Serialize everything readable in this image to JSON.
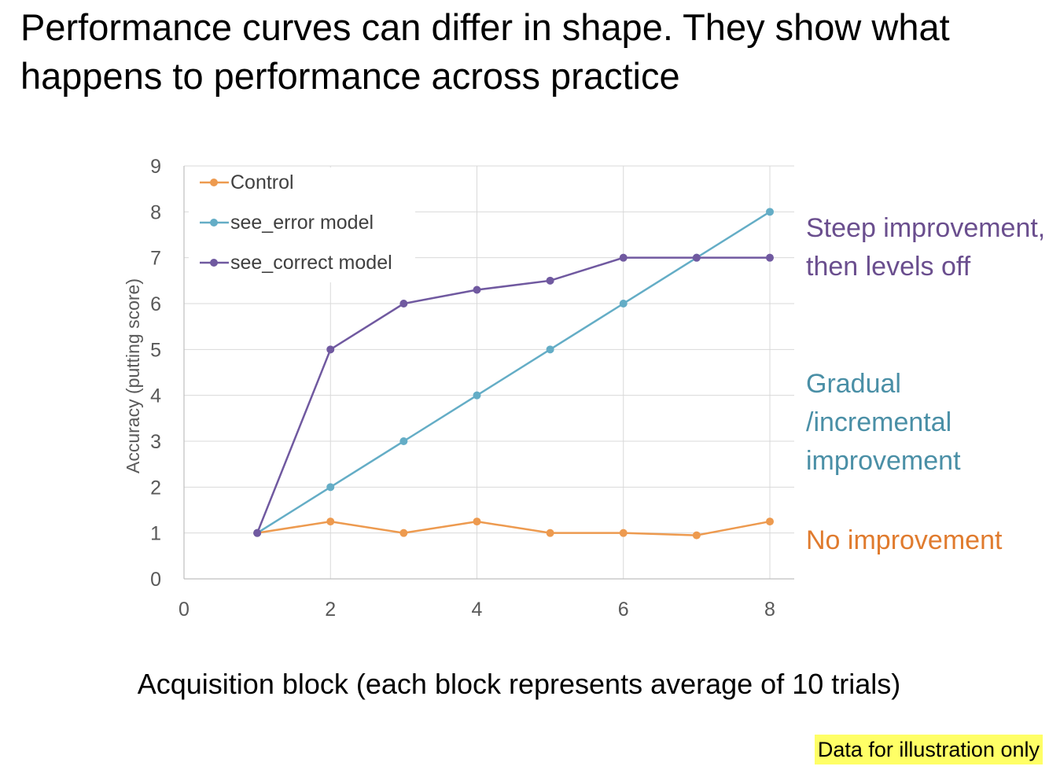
{
  "title": "Performance curves can differ in shape. They show what happens to performance across practice",
  "x_caption": "Acquisition block (each block represents average of 10 trials)",
  "disclaimer": "Data for illustration only",
  "annotations": {
    "steep": "Steep improvement, then levels off",
    "gradual": "Gradual /incremental improvement",
    "none": "No improvement"
  },
  "colors": {
    "control": "#ED9A4F",
    "see_error": "#64ADC6",
    "see_correct": "#7059A0",
    "steep_text": "#6A4E8E",
    "gradual_text": "#4A8FA6",
    "none_text": "#E07B2E",
    "disclaimer_bg": "#FFFF66",
    "grid": "#D9D9D9",
    "tick_text": "#595959"
  },
  "chart_data": {
    "type": "line",
    "ylabel": "Accuracy (putting score)",
    "xlabel": "",
    "xlim": [
      0,
      8
    ],
    "ylim": [
      0,
      9
    ],
    "x_ticks": [
      0,
      2,
      4,
      6,
      8
    ],
    "y_ticks": [
      0,
      1,
      2,
      3,
      4,
      5,
      6,
      7,
      8,
      9
    ],
    "grid": true,
    "legend_position": "top-left",
    "x": [
      1,
      2,
      3,
      4,
      5,
      6,
      7,
      8
    ],
    "series": [
      {
        "name": "Control",
        "color_key": "control",
        "values": [
          1,
          1.25,
          1,
          1.25,
          1,
          1,
          0.95,
          1.25
        ]
      },
      {
        "name": "see_error model",
        "color_key": "see_error",
        "values": [
          1,
          2,
          3,
          4,
          5,
          6,
          7,
          8
        ]
      },
      {
        "name": "see_correct model",
        "color_key": "see_correct",
        "values": [
          1,
          5,
          6,
          6.3,
          6.5,
          7,
          7,
          7
        ]
      }
    ]
  }
}
